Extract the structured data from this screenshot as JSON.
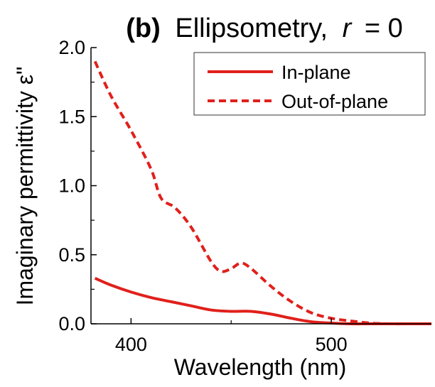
{
  "chart_data": {
    "type": "line",
    "title": {
      "panel": "(b)",
      "text": "Ellipsometry,",
      "variable": "r",
      "equals": "= 0"
    },
    "xlabel": "Wavelength (nm)",
    "ylabel": "Imaginary permittivity ε\"",
    "xlim": [
      380,
      550
    ],
    "ylim": [
      0,
      2.0
    ],
    "x_ticks": [
      400,
      500
    ],
    "x_tick_labels": [
      "400",
      "500"
    ],
    "y_ticks": [
      0,
      0.5,
      1.0,
      1.5,
      2.0
    ],
    "y_tick_labels": [
      "0.0",
      "0.5",
      "1.0",
      "1.5",
      "2.0"
    ],
    "grid": false,
    "legend_position": "top-right",
    "series": [
      {
        "name": "In-plane",
        "color": "#e0201b",
        "dash": "solid",
        "x": [
          382,
          390,
          400,
          410,
          420,
          430,
          440,
          450,
          460,
          470,
          480,
          490,
          500,
          510,
          520,
          530,
          540,
          550
        ],
        "y": [
          0.33,
          0.28,
          0.23,
          0.19,
          0.16,
          0.13,
          0.1,
          0.09,
          0.09,
          0.07,
          0.04,
          0.015,
          0.005,
          0.0,
          0.0,
          0.0,
          0.0,
          0.0
        ]
      },
      {
        "name": "Out-of-plane",
        "color": "#e0201b",
        "dash": "dashed",
        "x": [
          382,
          390,
          400,
          410,
          415,
          422,
          430,
          440,
          445,
          450,
          455,
          460,
          470,
          480,
          490,
          500,
          510,
          520,
          530,
          540,
          550
        ],
        "y": [
          1.9,
          1.65,
          1.4,
          1.12,
          0.91,
          0.84,
          0.7,
          0.45,
          0.38,
          0.4,
          0.44,
          0.4,
          0.27,
          0.16,
          0.08,
          0.04,
          0.02,
          0.005,
          0.0,
          0.0,
          0.0
        ]
      }
    ]
  }
}
